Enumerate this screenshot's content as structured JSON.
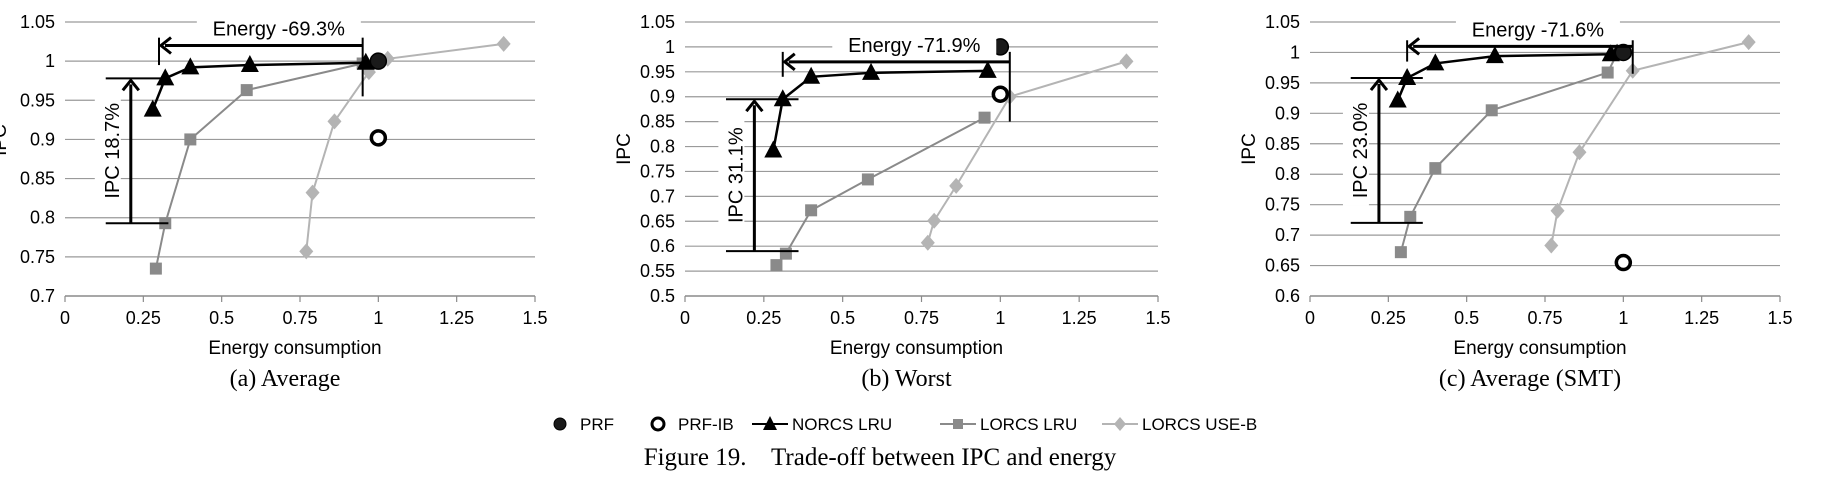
{
  "figure": {
    "caption": "Figure 19.    Trade-off between IPC and energy"
  },
  "legend": [
    {
      "name": "PRF",
      "marker": "circle-filled",
      "color": "#1a1a1a",
      "line": false
    },
    {
      "name": "PRF-IB",
      "marker": "circle-open",
      "color": "#000000",
      "line": false
    },
    {
      "name": "NORCS LRU",
      "marker": "triangle",
      "color": "#000000",
      "line": true
    },
    {
      "name": "LORCS LRU",
      "marker": "square",
      "color": "#8a8a8a",
      "line": true
    },
    {
      "name": "LORCS USE-B",
      "marker": "diamond",
      "color": "#b4b4b4",
      "line": true
    }
  ],
  "chart_data": [
    {
      "type": "scatter",
      "subcaption": "(a)  Average",
      "xlabel": "Energy consumption",
      "ylabel": "IPC",
      "xlim": [
        0,
        1.5
      ],
      "ylim": [
        0.7,
        1.05
      ],
      "xticks": [
        "0",
        "0.25",
        "0.5",
        "0.75",
        "1",
        "1.25",
        "1.5"
      ],
      "yticks": [
        "0.7",
        "0.75",
        "0.8",
        "0.85",
        "0.9",
        "0.95",
        "1",
        "1.05"
      ],
      "grid": true,
      "series": [
        {
          "name": "PRF",
          "points": [
            [
              1.0,
              1.0
            ]
          ]
        },
        {
          "name": "PRF-IB",
          "points": [
            [
              1.0,
              0.902
            ]
          ]
        },
        {
          "name": "NORCS LRU",
          "points": [
            [
              0.28,
              0.938
            ],
            [
              0.32,
              0.978
            ],
            [
              0.4,
              0.992
            ],
            [
              0.59,
              0.995
            ],
            [
              0.96,
              0.998
            ]
          ]
        },
        {
          "name": "LORCS LRU",
          "points": [
            [
              0.29,
              0.735
            ],
            [
              0.32,
              0.793
            ],
            [
              0.4,
              0.9
            ],
            [
              0.58,
              0.963
            ],
            [
              0.95,
              0.997
            ]
          ]
        },
        {
          "name": "LORCS USE-B",
          "points": [
            [
              0.77,
              0.757
            ],
            [
              0.79,
              0.832
            ],
            [
              0.86,
              0.923
            ],
            [
              0.97,
              0.986
            ],
            [
              1.03,
              1.003
            ],
            [
              1.4,
              1.022
            ]
          ]
        }
      ],
      "annotations": {
        "energy_label": "Energy -69.3%",
        "ipc_label": "IPC 18.7%",
        "energy_arrow": {
          "x_from": 0.95,
          "x_to": 0.3,
          "y": 1.02
        },
        "energy_bracket": {
          "x_right": 0.95,
          "x_left": 0.3,
          "y_top": 1.03,
          "y_bottom_right": 0.955,
          "y_bottom_left": 0.995
        },
        "ipc_arrow": {
          "x": 0.21,
          "y_from": 0.793,
          "y_to": 0.978
        },
        "ipc_bracket": {
          "x_left": 0.13,
          "x_right": 0.33,
          "y_top": 0.978,
          "y_bottom": 0.793
        }
      }
    },
    {
      "type": "scatter",
      "subcaption": "(b)  Worst",
      "xlabel": "Energy consumption",
      "ylabel": "IPC",
      "xlim": [
        0,
        1.5
      ],
      "ylim": [
        0.5,
        1.05
      ],
      "xticks": [
        "0",
        "0.25",
        "0.5",
        "0.75",
        "1",
        "1.25",
        "1.5"
      ],
      "yticks": [
        "0.5",
        "0.55",
        "0.6",
        "0.65",
        "0.7",
        "0.75",
        "0.8",
        "0.85",
        "0.9",
        "0.95",
        "1",
        "1.05"
      ],
      "grid": true,
      "series": [
        {
          "name": "PRF",
          "points": [
            [
              1.0,
              1.0
            ]
          ]
        },
        {
          "name": "PRF-IB",
          "points": [
            [
              1.0,
              0.905
            ]
          ]
        },
        {
          "name": "NORCS LRU",
          "points": [
            [
              0.28,
              0.792
            ],
            [
              0.31,
              0.895
            ],
            [
              0.4,
              0.94
            ],
            [
              0.59,
              0.948
            ],
            [
              0.96,
              0.952
            ]
          ]
        },
        {
          "name": "LORCS LRU",
          "points": [
            [
              0.29,
              0.562
            ],
            [
              0.32,
              0.585
            ],
            [
              0.4,
              0.672
            ],
            [
              0.58,
              0.734
            ],
            [
              0.95,
              0.858
            ]
          ]
        },
        {
          "name": "LORCS USE-B",
          "points": [
            [
              0.77,
              0.607
            ],
            [
              0.79,
              0.651
            ],
            [
              0.86,
              0.721
            ],
            [
              1.03,
              0.9
            ],
            [
              1.4,
              0.971
            ]
          ]
        }
      ],
      "annotations": {
        "energy_label": "Energy -71.9%",
        "ipc_label": "IPC 31.1%",
        "energy_arrow": {
          "x_from": 1.03,
          "x_to": 0.31,
          "y": 0.97
        },
        "energy_bracket": {
          "x_right": 1.03,
          "x_left": 0.31,
          "y_top": 0.99,
          "y_bottom_right": 0.85,
          "y_bottom_left": 0.94
        },
        "ipc_arrow": {
          "x": 0.22,
          "y_from": 0.59,
          "y_to": 0.895
        },
        "ipc_bracket": {
          "x_left": 0.13,
          "x_right": 0.36,
          "y_top": 0.895,
          "y_bottom": 0.59
        }
      }
    },
    {
      "type": "scatter",
      "subcaption": "(c)  Average (SMT)",
      "xlabel": "Energy consumption",
      "ylabel": "IPC",
      "xlim": [
        0,
        1.5
      ],
      "ylim": [
        0.6,
        1.05
      ],
      "xticks": [
        "0",
        "0.25",
        "0.5",
        "0.75",
        "1",
        "1.25",
        "1.5"
      ],
      "yticks": [
        "0.6",
        "0.65",
        "0.7",
        "0.75",
        "0.8",
        "0.85",
        "0.9",
        "0.95",
        "1",
        "1.05"
      ],
      "grid": true,
      "series": [
        {
          "name": "PRF",
          "points": [
            [
              1.0,
              1.0
            ]
          ]
        },
        {
          "name": "PRF-IB",
          "points": [
            [
              1.0,
              0.655
            ]
          ]
        },
        {
          "name": "NORCS LRU",
          "points": [
            [
              0.28,
              0.921
            ],
            [
              0.31,
              0.958
            ],
            [
              0.4,
              0.982
            ],
            [
              0.59,
              0.994
            ],
            [
              0.96,
              0.997
            ],
            [
              0.98,
              0.998
            ]
          ]
        },
        {
          "name": "LORCS LRU",
          "points": [
            [
              0.29,
              0.672
            ],
            [
              0.32,
              0.73
            ],
            [
              0.4,
              0.81
            ],
            [
              0.58,
              0.905
            ],
            [
              0.95,
              0.967
            ],
            [
              0.98,
              0.998
            ]
          ]
        },
        {
          "name": "LORCS USE-B",
          "points": [
            [
              0.77,
              0.683
            ],
            [
              0.79,
              0.74
            ],
            [
              0.86,
              0.836
            ],
            [
              1.03,
              0.97
            ],
            [
              1.4,
              1.017
            ]
          ]
        }
      ],
      "annotations": {
        "energy_label": "Energy -71.6%",
        "ipc_label": "IPC 23.0%",
        "energy_arrow": {
          "x_from": 1.03,
          "x_to": 0.31,
          "y": 1.01
        },
        "energy_bracket": {
          "x_right": 1.03,
          "x_left": 0.31,
          "y_top": 1.02,
          "y_bottom_right": 0.965,
          "y_bottom_left": 0.985
        },
        "ipc_arrow": {
          "x": 0.22,
          "y_from": 0.72,
          "y_to": 0.958
        },
        "ipc_bracket": {
          "x_left": 0.13,
          "x_right": 0.36,
          "y_top": 0.958,
          "y_bottom": 0.72
        }
      }
    }
  ]
}
